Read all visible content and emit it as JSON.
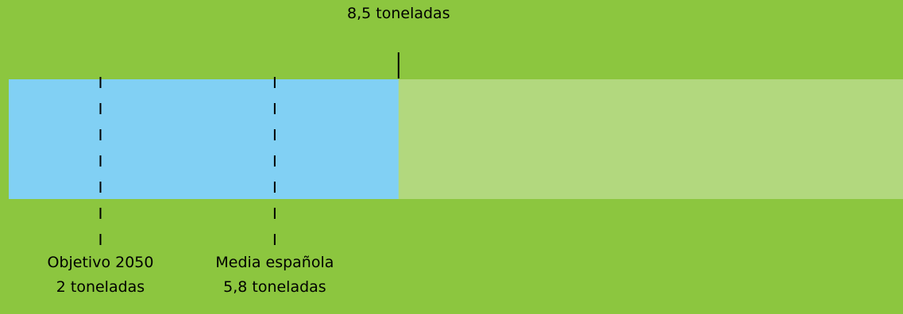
{
  "chart_data": {
    "type": "bar",
    "orientation": "horizontal",
    "unit": "toneladas",
    "scale_max": 19.5,
    "background_color": "#8cc63f",
    "track_color": "#b2d87e",
    "bar_color": "#81d0f4",
    "bar_value": 8.5,
    "bar_label": "8,5 toneladas",
    "markers": [
      {
        "value": 2.0,
        "label_line1": "Objetivo 2050",
        "label_line2": "2 toneladas",
        "style": "dashed"
      },
      {
        "value": 5.8,
        "label_line1": "Media española",
        "label_line2": "5,8 toneladas",
        "style": "dashed"
      }
    ]
  }
}
